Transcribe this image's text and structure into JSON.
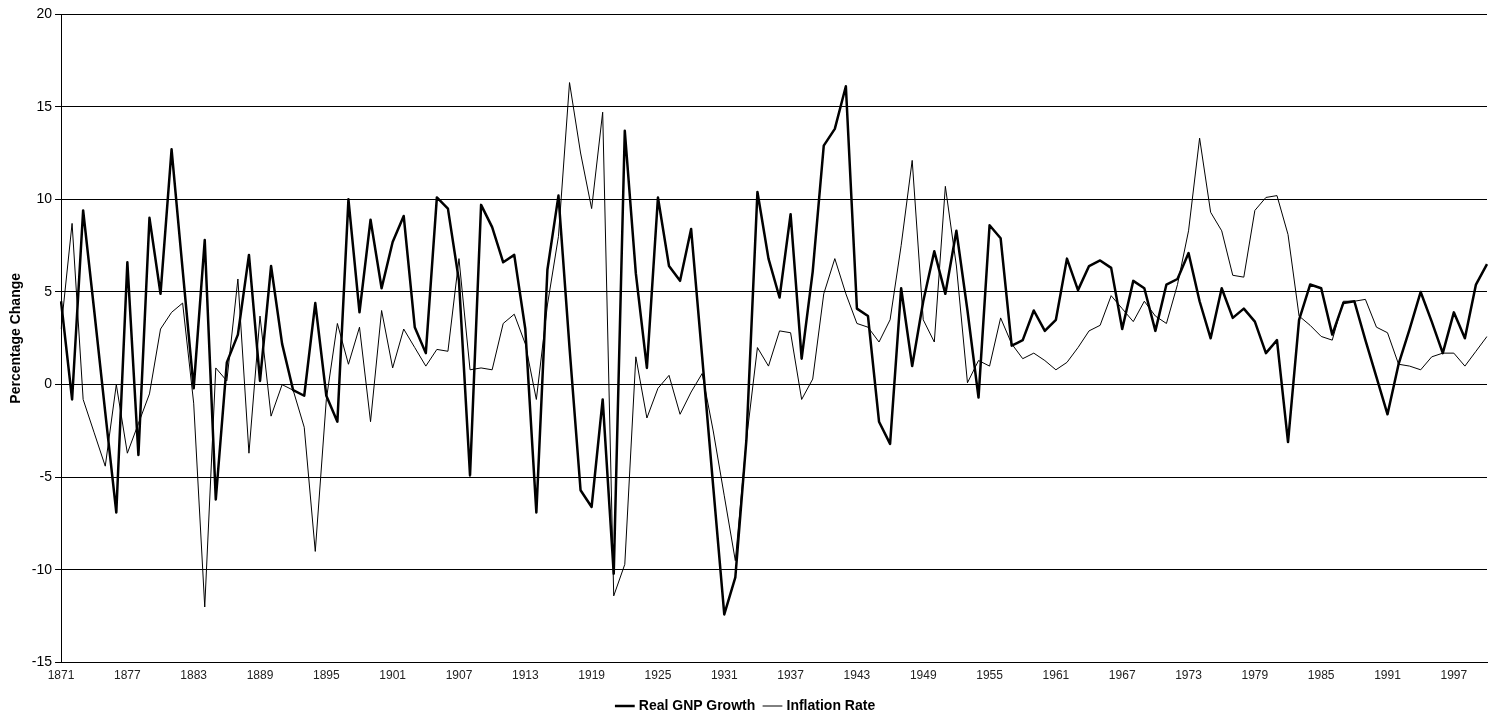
{
  "chart_data": {
    "type": "line",
    "ylabel": "Percentage Change",
    "categories": [
      "1871",
      null,
      null,
      null,
      null,
      null,
      "1877",
      null,
      null,
      null,
      null,
      null,
      "1883",
      null,
      null,
      null,
      null,
      null,
      "1889",
      null,
      null,
      null,
      null,
      null,
      "1895",
      null,
      null,
      null,
      null,
      null,
      "1901",
      null,
      null,
      null,
      null,
      null,
      "1907",
      null,
      null,
      null,
      null,
      null,
      "1913",
      null,
      null,
      null,
      null,
      null,
      "1919",
      null,
      null,
      null,
      null,
      null,
      "1925",
      null,
      null,
      null,
      null,
      null,
      "1931",
      null,
      null,
      null,
      null,
      null,
      "1937",
      null,
      null,
      null,
      null,
      null,
      "1943",
      null,
      null,
      null,
      null,
      null,
      "1949",
      null,
      null,
      null,
      null,
      null,
      "1955",
      null,
      null,
      null,
      null,
      null,
      "1961",
      null,
      null,
      null,
      null,
      null,
      "1967",
      null,
      null,
      null,
      null,
      null,
      "1973",
      null,
      null,
      null,
      null,
      null,
      "1979",
      null,
      null,
      null,
      null,
      null,
      "1985",
      null,
      null,
      null,
      null,
      null,
      "1991",
      null,
      null,
      null,
      null,
      null,
      "1997",
      null,
      null,
      null
    ],
    "series": [
      {
        "name": "Real GNP Growth",
        "color": "#000000",
        "values": [
          4.5,
          -0.8,
          9.4,
          4.0,
          -1.5,
          -6.9,
          6.6,
          -3.8,
          9.0,
          4.9,
          12.7,
          6.2,
          -0.2,
          7.8,
          -6.2,
          1.2,
          2.7,
          7.0,
          0.2,
          6.4,
          2.2,
          -0.3,
          -0.6,
          4.4,
          -0.6,
          -2.0,
          10.0,
          3.9,
          8.9,
          5.2,
          7.7,
          9.1,
          3.1,
          1.7,
          10.1,
          9.5,
          5.6,
          -4.9,
          9.7,
          8.5,
          6.6,
          7.0,
          3.0,
          -6.9,
          6.2,
          10.2,
          2.0,
          -5.7,
          -6.6,
          -0.8,
          -10.2,
          13.7,
          6.0,
          0.9,
          10.1,
          6.4,
          5.6,
          8.4,
          1.5,
          -5.5,
          -12.4,
          -10.4,
          -3.0,
          10.4,
          6.8,
          4.7,
          9.2,
          1.4,
          6.1,
          12.9,
          13.8,
          16.1,
          4.1,
          3.7,
          -2.0,
          -3.2,
          5.2,
          1.0,
          4.5,
          7.2,
          4.9,
          8.3,
          4.0,
          -0.7,
          8.6,
          7.9,
          2.1,
          2.4,
          4.0,
          2.9,
          3.5,
          6.8,
          5.1,
          6.4,
          6.7,
          6.3,
          3.0,
          5.6,
          5.2,
          2.9,
          5.4,
          5.7,
          7.1,
          4.5,
          2.5,
          5.2,
          3.6,
          4.1,
          3.4,
          1.7,
          2.4,
          -3.1,
          3.5,
          5.4,
          5.2,
          2.7,
          4.4,
          4.5,
          2.4,
          0.4,
          -1.6,
          1.1,
          3.0,
          5.0,
          3.4,
          1.7,
          3.9,
          2.5,
          5.4,
          6.5
        ]
      },
      {
        "name": "Inflation Rate",
        "color": "#000000",
        "values": [
          3.0,
          8.7,
          -0.8,
          -2.6,
          -4.4,
          0.0,
          -3.7,
          -2.1,
          -0.5,
          3.0,
          3.9,
          4.4,
          -1.0,
          -12.0,
          0.9,
          0.2,
          5.7,
          -3.7,
          3.7,
          -1.7,
          0.0,
          -0.3,
          -2.3,
          -9.0,
          -0.8,
          3.3,
          1.1,
          3.1,
          -2.0,
          4.0,
          0.9,
          3.0,
          2.0,
          1.0,
          1.9,
          1.8,
          6.8,
          0.8,
          0.9,
          0.8,
          3.3,
          3.8,
          2.2,
          -0.8,
          4.3,
          8.0,
          16.3,
          12.5,
          9.5,
          14.7,
          -11.4,
          -9.7,
          1.5,
          -1.8,
          -0.2,
          0.5,
          -1.6,
          -0.4,
          0.6,
          -2.5,
          -6.0,
          -9.5,
          -3.0,
          2.0,
          1.0,
          2.9,
          2.8,
          -0.8,
          0.3,
          4.9,
          6.8,
          4.9,
          3.3,
          3.1,
          2.3,
          3.5,
          7.5,
          12.1,
          3.5,
          2.3,
          10.7,
          6.4,
          0.1,
          1.3,
          1.0,
          3.6,
          2.2,
          1.4,
          1.7,
          1.3,
          0.8,
          1.2,
          2.0,
          2.9,
          3.2,
          4.8,
          4.1,
          3.4,
          4.5,
          3.7,
          3.3,
          5.4,
          8.3,
          13.3,
          9.3,
          8.3,
          5.9,
          5.8,
          9.4,
          10.1,
          10.2,
          8.1,
          3.7,
          3.2,
          2.6,
          2.4,
          4.5,
          4.5,
          4.6,
          3.1,
          2.8,
          1.1,
          1.0,
          0.8,
          1.5,
          1.7,
          1.7,
          1.0,
          1.8,
          2.6
        ]
      }
    ],
    "ylim": [
      -15,
      20
    ],
    "yticks": [
      -15,
      -10,
      -5,
      0,
      5,
      10,
      15,
      20
    ],
    "grid": "y",
    "legend": "bottom",
    "marker": "none",
    "line_style": "solid"
  }
}
